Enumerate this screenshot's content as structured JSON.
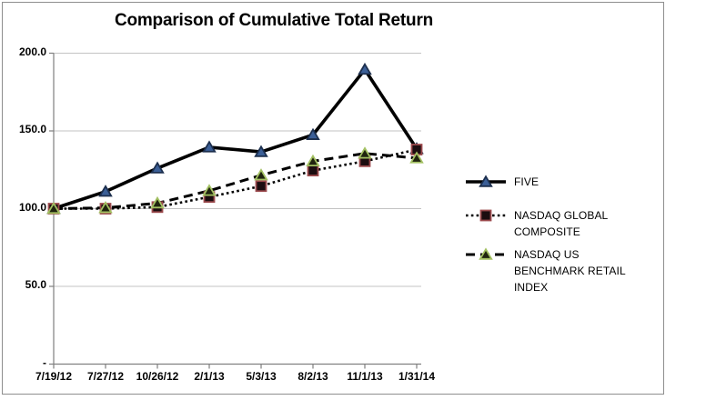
{
  "title": "Comparison of Cumulative Total Return",
  "chart_data": {
    "type": "line",
    "title": "Comparison of Cumulative Total Return",
    "categories": [
      "7/19/12",
      "7/27/12",
      "10/26/12",
      "2/1/13",
      "5/3/13",
      "8/2/13",
      "11/1/13",
      "1/31/14"
    ],
    "series": [
      {
        "name": "FIVE",
        "values": [
          100,
          111,
          126,
          139.5,
          136.5,
          147.5,
          189.5,
          138.5
        ],
        "line_style": "solid",
        "line_color": "#000000",
        "marker": "triangle",
        "marker_fill": "#3b5f97",
        "marker_stroke": "#1c2f4e"
      },
      {
        "name": "NASDAQ GLOBAL COMPOSITE",
        "values": [
          100,
          100,
          101,
          107.5,
          114.5,
          124.5,
          130.5,
          138
        ],
        "line_style": "dotted",
        "line_color": "#000000",
        "marker": "square",
        "marker_fill": "#1b0d10",
        "marker_stroke": "#9c4a4d"
      },
      {
        "name": "NASDAQ US BENCHMARK RETAIL INDEX",
        "values": [
          100,
          100.5,
          103.5,
          111.5,
          121.5,
          130.5,
          135.5,
          132.5
        ],
        "line_style": "dashed",
        "line_color": "#000000",
        "marker": "triangle",
        "marker_fill": "#20240f",
        "marker_stroke": "#a3c162"
      }
    ],
    "y_ticks": [
      {
        "label": "200.0",
        "value": 200
      },
      {
        "label": "150.0",
        "value": 150
      },
      {
        "label": "100.0",
        "value": 100
      },
      {
        "label": "50.0",
        "value": 50
      },
      {
        "label": "-",
        "value": 0
      }
    ],
    "ylim": [
      0,
      200
    ],
    "xlabel": "",
    "ylabel": "",
    "grid": "horizontal",
    "legend_position": "right"
  },
  "colors": {
    "gridline": "#c3c3c3",
    "axis": "#7f7f7f",
    "frame_border": "#8e8e8e",
    "text": "#000000",
    "background": "#ffffff"
  }
}
